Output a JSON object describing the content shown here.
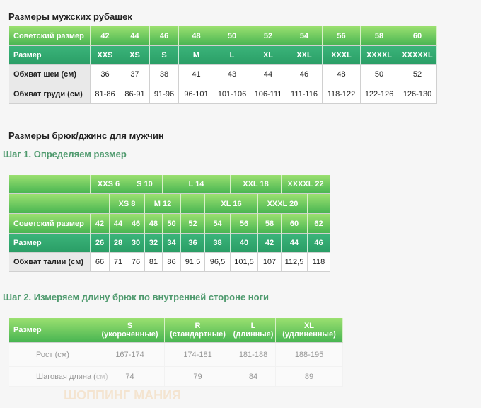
{
  "shirts": {
    "title": "Размеры мужских рубашек",
    "rows": [
      [
        "Советский размер",
        "42",
        "44",
        "46",
        "48",
        "50",
        "52",
        "54",
        "56",
        "58",
        "60"
      ],
      [
        "Размер",
        "XXS",
        "XS",
        "S",
        "M",
        "L",
        "XL",
        "XXL",
        "XXXL",
        "XXXXL",
        "XXXXXL"
      ],
      [
        "Обхват шеи (см)",
        "36",
        "37",
        "38",
        "41",
        "43",
        "44",
        "46",
        "48",
        "50",
        "52"
      ],
      [
        "Обхват груди (см)",
        "81-86",
        "86-91",
        "91-96",
        "96-101",
        "101-106",
        "106-111",
        "111-116",
        "118-122",
        "122-126",
        "126-130"
      ]
    ]
  },
  "trousers": {
    "title": "Размеры брюк/джинс для мужчин",
    "step1": "Шаг 1.  Определяем размер",
    "rows": [
      [
        "XXS 6",
        "S 10",
        "L 14",
        "XXL 18",
        "XXXXL 22"
      ],
      [
        "XS 8",
        "M 12",
        "XL 16",
        "XXXL 20"
      ],
      [
        "Советский размер",
        "42",
        "44",
        "46",
        "48",
        "50",
        "52",
        "54",
        "56",
        "58",
        "60",
        "62"
      ],
      [
        "Размер",
        "26",
        "28",
        "30",
        "32",
        "34",
        "36",
        "38",
        "40",
        "42",
        "44",
        "46"
      ],
      [
        "Обхват талии (см)",
        "66",
        "71",
        "76",
        "81",
        "86",
        "91,5",
        "96,5",
        "101,5",
        "107",
        "112,5",
        "118"
      ]
    ],
    "step2": "Шаг 2.  Измеряем длину брюк по внутренней стороне ноги",
    "length_table": {
      "header": [
        "Размер",
        [
          "S",
          "(укороченные)"
        ],
        [
          "R",
          "(стандартные)"
        ],
        [
          "L",
          "(длинные)"
        ],
        [
          "XL",
          "(удлиненные)"
        ]
      ],
      "rows": [
        [
          "Рост (см)",
          "167-174",
          "174-181",
          "181-188",
          "188-195"
        ],
        [
          "Шаговая длина (см)",
          "74",
          "79",
          "84",
          "89"
        ]
      ]
    },
    "watermark": "ШОППИНГ МАНИЯ"
  }
}
